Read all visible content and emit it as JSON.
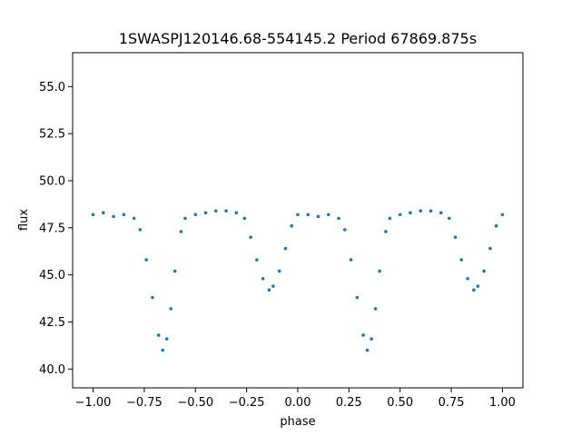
{
  "chart_data": {
    "type": "scatter",
    "title": "1SWASPJ120146.68-554145.2 Period 67869.875s",
    "xlabel": "phase",
    "ylabel": "flux",
    "xlim": [
      -1.1,
      1.1
    ],
    "ylim": [
      39.0,
      56.8
    ],
    "xticks": [
      -1.0,
      -0.75,
      -0.5,
      -0.25,
      0.0,
      0.25,
      0.5,
      0.75,
      1.0
    ],
    "xtick_labels": [
      "−1.00",
      "−0.75",
      "−0.50",
      "−0.25",
      "0.00",
      "0.25",
      "0.50",
      "0.75",
      "1.00"
    ],
    "yticks": [
      40.0,
      42.5,
      45.0,
      47.5,
      50.0,
      52.5,
      55.0
    ],
    "ytick_labels": [
      "40.0",
      "42.5",
      "45.0",
      "47.5",
      "50.0",
      "52.5",
      "55.0"
    ],
    "grid": false,
    "color": "#1f77b4",
    "series": [
      {
        "points": [
          [
            -1.0,
            48.2
          ],
          [
            -0.95,
            48.3
          ],
          [
            -0.9,
            48.1
          ],
          [
            -0.85,
            48.2
          ],
          [
            -0.8,
            48.0
          ],
          [
            -0.77,
            47.4
          ],
          [
            -0.74,
            45.8
          ],
          [
            -0.71,
            43.8
          ],
          [
            -0.68,
            41.8
          ],
          [
            -0.66,
            41.0
          ],
          [
            -0.64,
            41.6
          ],
          [
            -0.62,
            43.2
          ],
          [
            -0.6,
            45.2
          ],
          [
            -0.57,
            47.3
          ],
          [
            -0.55,
            48.0
          ],
          [
            -0.5,
            48.2
          ],
          [
            -0.45,
            48.3
          ],
          [
            -0.4,
            48.4
          ],
          [
            -0.35,
            48.4
          ],
          [
            -0.3,
            48.3
          ],
          [
            -0.26,
            48.0
          ],
          [
            -0.23,
            47.0
          ],
          [
            -0.2,
            45.8
          ],
          [
            -0.17,
            44.8
          ],
          [
            -0.14,
            44.2
          ],
          [
            -0.12,
            44.4
          ],
          [
            -0.09,
            45.2
          ],
          [
            -0.06,
            46.4
          ],
          [
            -0.03,
            47.6
          ],
          [
            0.0,
            48.2
          ],
          [
            0.05,
            48.2
          ],
          [
            0.1,
            48.1
          ],
          [
            0.15,
            48.2
          ],
          [
            0.2,
            48.0
          ],
          [
            0.23,
            47.4
          ],
          [
            0.26,
            45.8
          ],
          [
            0.29,
            43.8
          ],
          [
            0.32,
            41.8
          ],
          [
            0.34,
            41.0
          ],
          [
            0.36,
            41.6
          ],
          [
            0.38,
            43.2
          ],
          [
            0.4,
            45.2
          ],
          [
            0.43,
            47.3
          ],
          [
            0.45,
            48.0
          ],
          [
            0.5,
            48.2
          ],
          [
            0.55,
            48.3
          ],
          [
            0.6,
            48.4
          ],
          [
            0.65,
            48.4
          ],
          [
            0.7,
            48.3
          ],
          [
            0.74,
            48.0
          ],
          [
            0.77,
            47.0
          ],
          [
            0.8,
            45.8
          ],
          [
            0.83,
            44.8
          ],
          [
            0.86,
            44.2
          ],
          [
            0.88,
            44.4
          ],
          [
            0.91,
            45.2
          ],
          [
            0.94,
            46.4
          ],
          [
            0.97,
            47.6
          ],
          [
            1.0,
            48.2
          ]
        ]
      }
    ]
  }
}
